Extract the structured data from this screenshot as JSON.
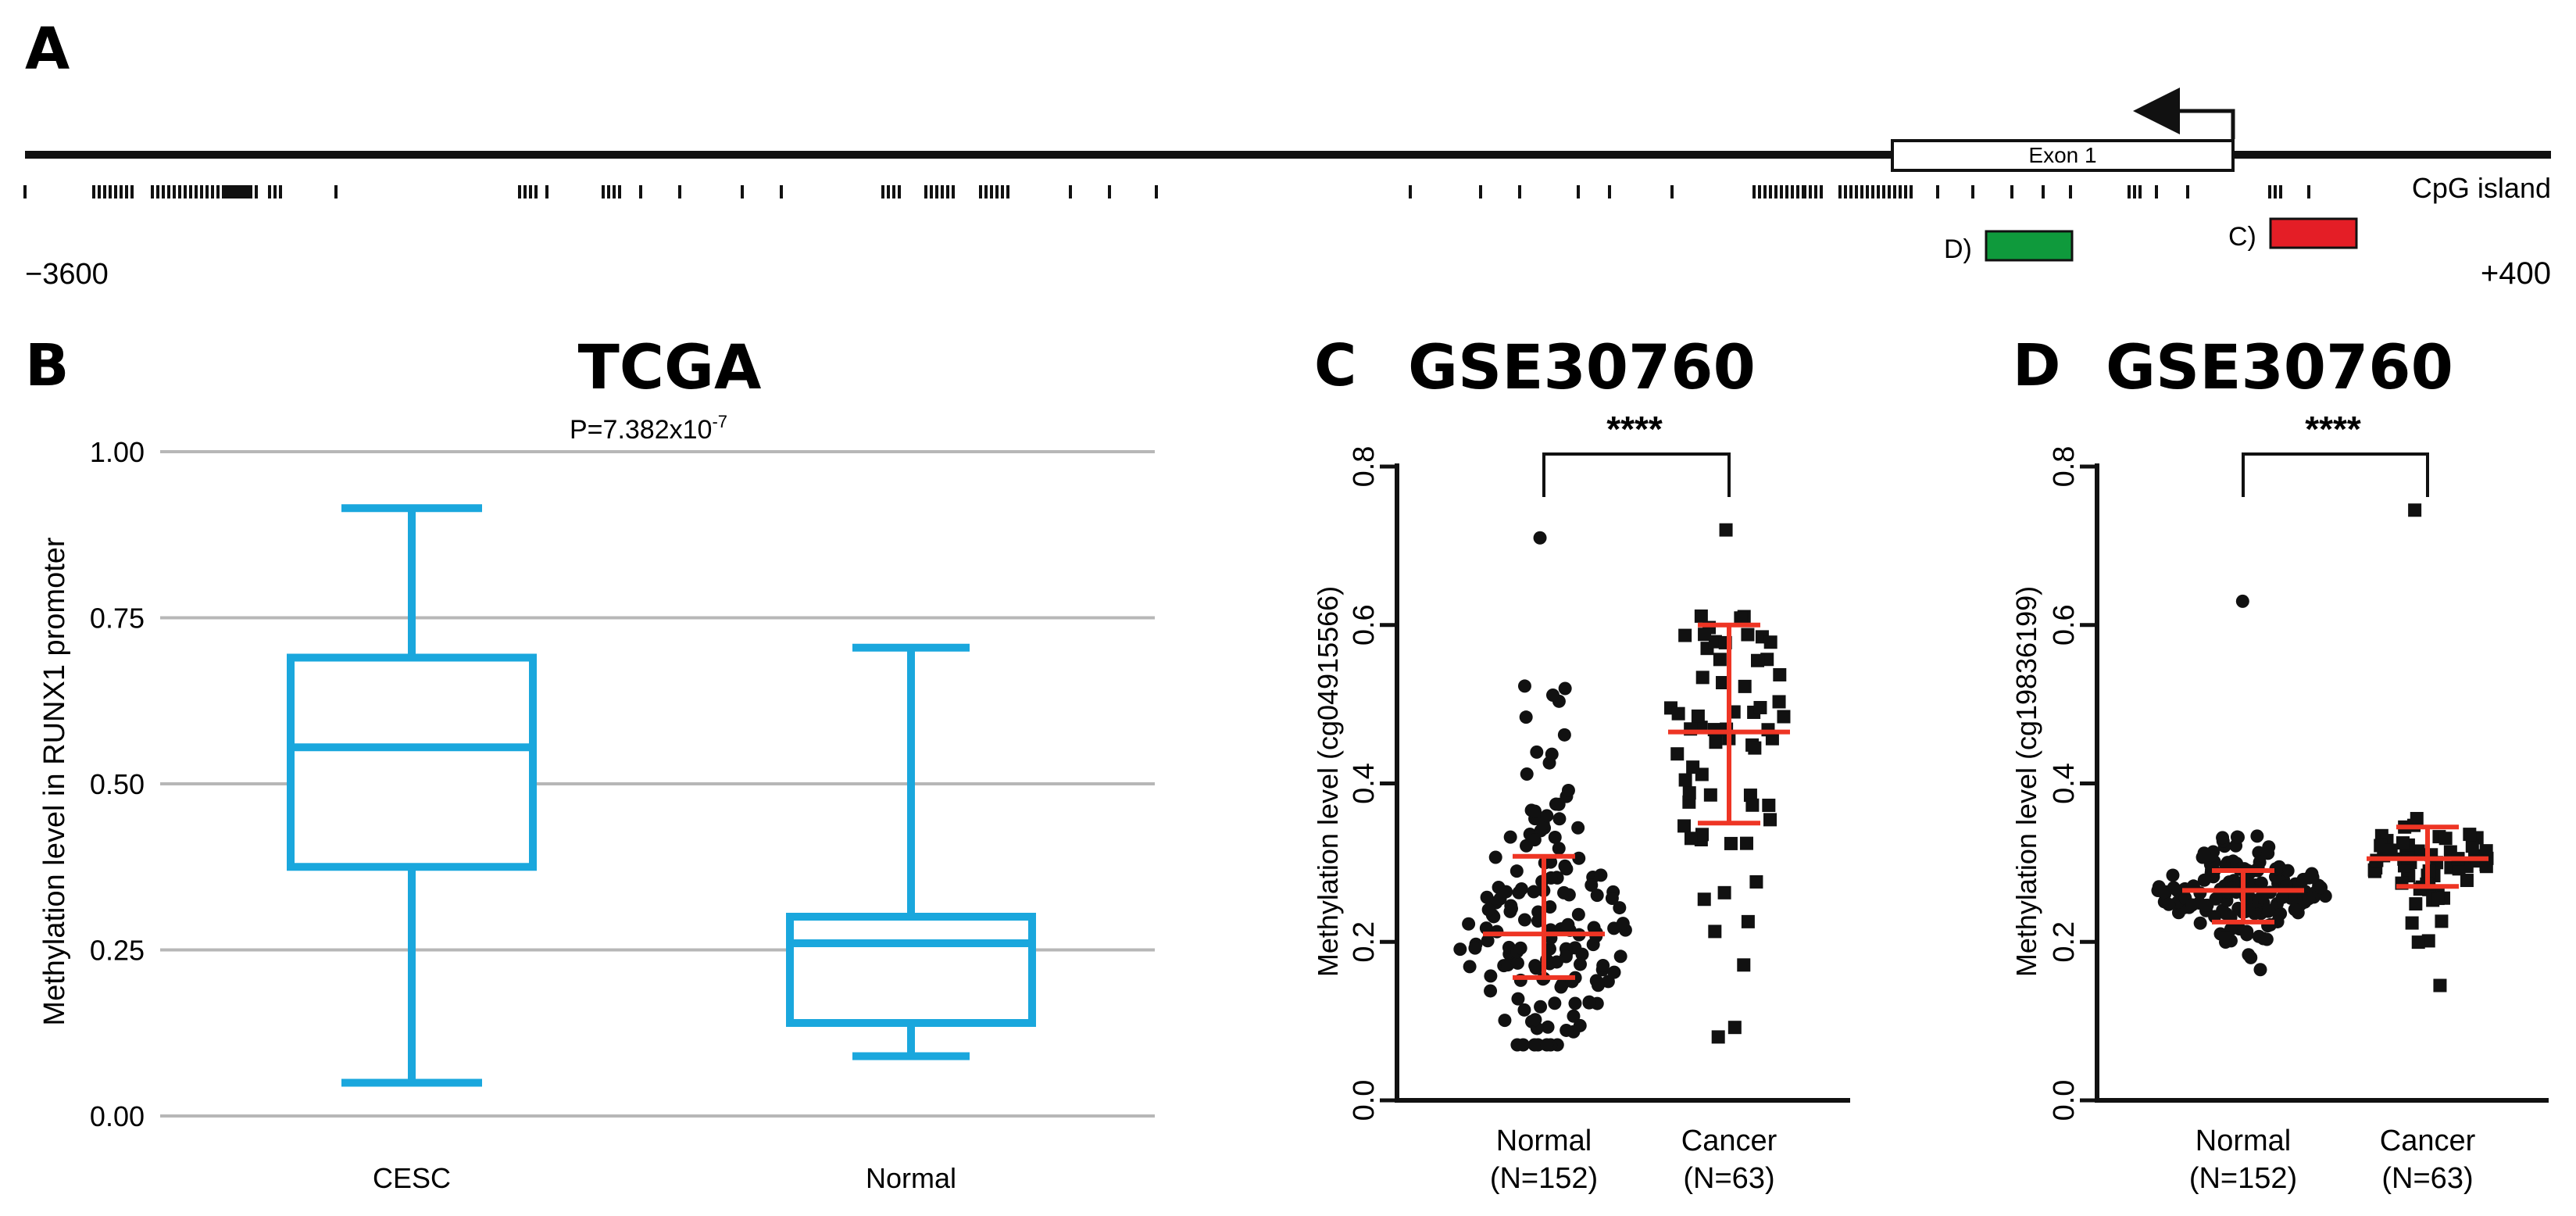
{
  "colors": {
    "box": "#1aa7dd",
    "grid": "#b7b7b7",
    "axis": "#111111",
    "dot": "#111111",
    "error": "#ee3524",
    "probe_d": "#0f9a3c",
    "probe_c": "#e41e26"
  },
  "panel_a": {
    "letter": "A",
    "cpg_label": "CpG island",
    "exon_label": "Exon 1",
    "start_label": "−3600",
    "end_label": "+400",
    "probe_d_label": "D)",
    "probe_c_label": "C)"
  },
  "chart_data": [
    {
      "panel": "B",
      "type": "box",
      "title": "TCGA",
      "pvalue_base": "P=7.382x10",
      "pvalue_exp": "-7",
      "ylabel": "Methylation level in RUNX1 promoter",
      "ylim": [
        0,
        1
      ],
      "yticks": [
        "0.00",
        "0.25",
        "0.50",
        "0.75",
        "1.00"
      ],
      "grid": true,
      "groups": [
        {
          "name": "CESC",
          "min": 0.05,
          "q1": 0.375,
          "median": 0.555,
          "q3": 0.69,
          "max": 0.915
        },
        {
          "name": "Normal",
          "min": 0.09,
          "q1": 0.14,
          "median": 0.26,
          "q3": 0.3,
          "max": 0.705
        }
      ]
    },
    {
      "panel": "C",
      "type": "scatter",
      "title": "GSE30760",
      "ylabel": "Methylation level  (cg04915566)",
      "ylim": [
        0,
        0.8
      ],
      "yticks": [
        "0.0",
        "0.2",
        "0.4",
        "0.6",
        "0.8"
      ],
      "significance": "****",
      "groups": [
        {
          "name": "Normal",
          "n_label": "(N=152)",
          "n": 152,
          "mean": 0.21,
          "sd_low": 0.155,
          "sd_high": 0.308,
          "min": 0.07,
          "max": 0.71
        },
        {
          "name": "Cancer",
          "n_label": "(N=63)",
          "n": 63,
          "mean": 0.465,
          "sd_low": 0.35,
          "sd_high": 0.6,
          "min": 0.08,
          "max": 0.72
        }
      ]
    },
    {
      "panel": "D",
      "type": "scatter",
      "title": "GSE30760",
      "ylabel": "Methylation level  (cg19836199)",
      "ylim": [
        0,
        0.8
      ],
      "yticks": [
        "0.0",
        "0.2",
        "0.4",
        "0.6",
        "0.8"
      ],
      "significance": "****",
      "groups": [
        {
          "name": "Normal",
          "n_label": "(N=152)",
          "n": 152,
          "mean": 0.265,
          "sd_low": 0.225,
          "sd_high": 0.29,
          "min": 0.165,
          "max": 0.63
        },
        {
          "name": "Cancer",
          "n_label": "(N=63)",
          "n": 63,
          "mean": 0.305,
          "sd_low": 0.27,
          "sd_high": 0.345,
          "min": 0.145,
          "max": 0.745
        }
      ]
    }
  ]
}
